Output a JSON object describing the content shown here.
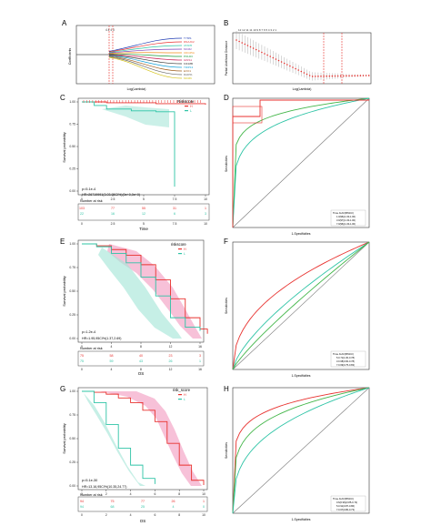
{
  "colors": {
    "red": "#e8322f",
    "teal": "#2ec4a6",
    "green": "#43b649",
    "pink": "#f4a7c8",
    "lightteal": "#a8e6d8",
    "grey": "#8a8a8a",
    "blue": "#2a3fb5"
  },
  "chart_data": [
    {
      "panel": "A",
      "type": "line",
      "xlabel": "Log(Lambda)",
      "ylabel": "Coefficients",
      "lambda_annot": "4  4  4  3",
      "legend": [
        "TYMS",
        "DNAJC2",
        "ATAD5",
        "MCM2",
        "CDC25A",
        "POLD3",
        "GINS1",
        "KIF18B",
        "TRIP13",
        "EXO1",
        "RAD51",
        "MCM6"
      ]
    },
    {
      "panel": "B",
      "type": "line",
      "xlabel": "Log(Lambda)",
      "ylabel": "Partial Likelihood Deviance",
      "top_counts": "12 12 11 11 10 9 8 7 6 5 4 3 2 1"
    },
    {
      "panel": "C",
      "type": "line",
      "title": "",
      "xlabel": "Time",
      "ylabel": "Survival probability",
      "legend_title": "Riskscore",
      "legend": [
        "H",
        "L"
      ],
      "pvalue": "p=5.1e-4",
      "hr": "HR=26719991(3.03,95CI%)(0e+0,0e+0)",
      "xticks": [
        "0",
        "2.5",
        "5",
        "7.5",
        "10"
      ],
      "yticks": [
        "0.00",
        "0.25",
        "0.50",
        "0.75",
        "1.00"
      ],
      "risk_title": "Number at risk",
      "risk_H": [
        "103",
        "77",
        "55",
        "31",
        "1"
      ],
      "risk_L": [
        "22",
        "16",
        "12",
        "6",
        "3"
      ],
      "series": [
        {
          "name": "H",
          "x": [
            0,
            2,
            4,
            6,
            8,
            10
          ],
          "y": [
            1,
            0.99,
            0.99,
            0.98,
            0.98,
            0.97
          ]
        },
        {
          "name": "L",
          "x": [
            0,
            1,
            2,
            4,
            6,
            7,
            7.5
          ],
          "y": [
            1,
            0.96,
            0.92,
            0.9,
            0.89,
            0.89,
            0.05
          ]
        }
      ]
    },
    {
      "panel": "D",
      "type": "line",
      "xlabel": "1-Specificities",
      "ylabel": "Sensitivities",
      "legend_title": "Time AUC(95%CI)",
      "legend": [
        "1.0(96)(1.00-1.00)",
        "3.0(97)(1.00-1.00)",
        "7.0(96)(1.00-1.00)"
      ]
    },
    {
      "panel": "E",
      "type": "line",
      "xlabel": "OS",
      "ylabel": "Survival probability",
      "legend_title": "riskscore",
      "legend": [
        "H",
        "L"
      ],
      "pvalue": "p=1.2e-4",
      "hr": "HR=1.95,95CI%(1.37,2.69)",
      "xticks": [
        "0",
        "4",
        "8",
        "12",
        "16"
      ],
      "yticks": [
        "0.00",
        "0.25",
        "0.50",
        "0.75",
        "1.00"
      ],
      "risk_title": "Number at risk",
      "risk_H": [
        "75",
        "58",
        "40",
        "23",
        "3"
      ],
      "risk_L": [
        "75",
        "59",
        "43",
        "26",
        "1"
      ],
      "series": [
        {
          "name": "H",
          "x": [
            0,
            2,
            4,
            6,
            8,
            10,
            12,
            14,
            16,
            17
          ],
          "y": [
            1,
            0.98,
            0.94,
            0.88,
            0.78,
            0.62,
            0.42,
            0.22,
            0.1,
            0.05
          ]
        },
        {
          "name": "L",
          "x": [
            0,
            2,
            4,
            6,
            8,
            10,
            12,
            14,
            16
          ],
          "y": [
            1,
            0.97,
            0.9,
            0.8,
            0.65,
            0.45,
            0.22,
            0.12,
            0.08
          ]
        }
      ]
    },
    {
      "panel": "F",
      "type": "line",
      "xlabel": "1-Specificities",
      "ylabel": "Sensitivities",
      "legend_title": "Time AUC(95%CI)",
      "legend": [
        "5.0.71(1.00-0.78)",
        "3.0.68(0.60-0.78)",
        "7.0.69(0.75-0.83)"
      ]
    },
    {
      "panel": "G",
      "type": "line",
      "xlabel": "OS",
      "ylabel": "Survival probability",
      "legend_title": "risk_score",
      "legend": [
        "H",
        "L"
      ],
      "pvalue": "p=5.1e-30",
      "hr": "HR=13.16,95CI%(10.35,24.77)",
      "xticks": [
        "0",
        "2",
        "4",
        "6",
        "8",
        "10"
      ],
      "yticks": [
        "0.00",
        "0.25",
        "0.50",
        "0.75",
        "1.00"
      ],
      "risk_title": "Number at risk",
      "risk_H": [
        "94",
        "75",
        "77",
        "26",
        "1"
      ],
      "risk_L": [
        "94",
        "68",
        "25",
        "4",
        "0"
      ],
      "series": [
        {
          "name": "H",
          "x": [
            0,
            1,
            2,
            3,
            4,
            5,
            6,
            7,
            8,
            9,
            10
          ],
          "y": [
            1,
            0.99,
            0.97,
            0.93,
            0.88,
            0.8,
            0.68,
            0.45,
            0.22,
            0.06,
            0.01
          ]
        },
        {
          "name": "L",
          "x": [
            0,
            1,
            2,
            3,
            4,
            5,
            6
          ],
          "y": [
            1,
            0.88,
            0.65,
            0.4,
            0.22,
            0.08,
            0.02
          ]
        }
      ]
    },
    {
      "panel": "H",
      "type": "line",
      "xlabel": "1-Specificities",
      "ylabel": "Sensitivities",
      "legend_title": "Time AUC(95%CI)",
      "legend": [
        "0.6(0.96)(0.85-0.72)",
        "5.0.91(0.87-0.86)",
        "7.0.67(0.80-0.73)"
      ]
    }
  ]
}
